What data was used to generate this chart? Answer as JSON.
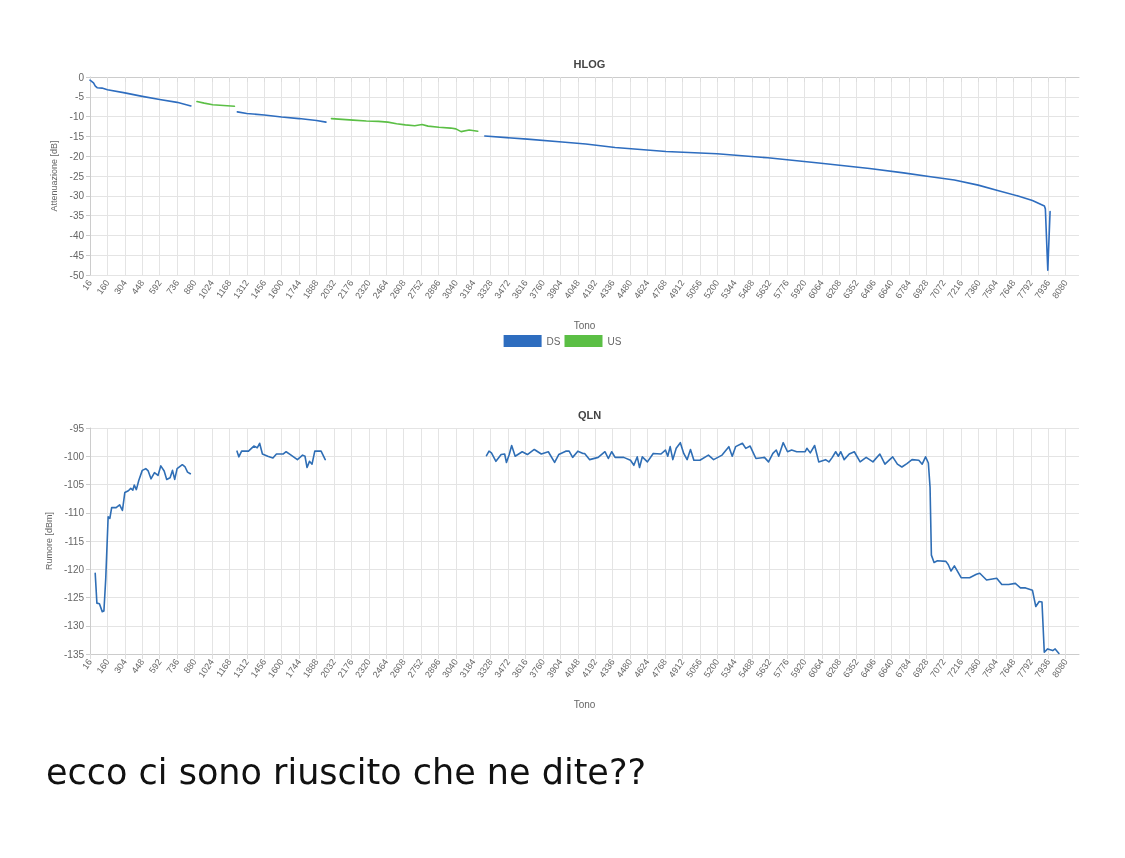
{
  "chart_data": [
    {
      "type": "line",
      "title": "HLOG",
      "xlabel": "Tono",
      "ylabel": "Attenuazione [dB]",
      "xlim": [
        16,
        8190
      ],
      "ylim": [
        -50,
        0
      ],
      "xticks": [
        16,
        160,
        304,
        448,
        592,
        736,
        880,
        1024,
        1168,
        1312,
        1456,
        1600,
        1744,
        1888,
        2032,
        2176,
        2320,
        2464,
        2608,
        2752,
        2896,
        3040,
        3184,
        3328,
        3472,
        3616,
        3760,
        3904,
        4048,
        4192,
        4336,
        4480,
        4624,
        4768,
        4912,
        5056,
        5200,
        5344,
        5488,
        5632,
        5776,
        5920,
        6064,
        6208,
        6352,
        6496,
        6640,
        6784,
        6928,
        7072,
        7216,
        7360,
        7504,
        7648,
        7792,
        7936,
        8080
      ],
      "yticks": [
        0,
        -5,
        -10,
        -15,
        -20,
        -25,
        -30,
        -35,
        -40,
        -45,
        -50
      ],
      "grid": true,
      "legend": "bottom",
      "marker": "none",
      "line_style": "solid",
      "series": [
        {
          "name": "DS",
          "color": "#2e6dbf",
          "x": [
            16,
            45,
            60,
            75,
            115,
            160,
            304,
            448,
            592,
            736,
            850,
            1040,
            1234,
            1312,
            1456,
            1600,
            1744,
            1888,
            1966,
            2600,
            3279,
            3630,
            3918,
            4114,
            4356,
            4777,
            5198,
            5618,
            6039,
            6459,
            6740,
            6964,
            7160,
            7357,
            7525,
            7693,
            7805,
            7904,
            7912,
            7932,
            7951
          ],
          "values": [
            -0.8,
            -1.5,
            -2.3,
            -2.7,
            -2.8,
            -3.2,
            -4.0,
            -4.9,
            -5.7,
            -6.4,
            -7.3,
            null,
            -8.8,
            -9.2,
            -9.6,
            -10.1,
            -10.5,
            -11.0,
            -11.4,
            null,
            -14.9,
            -15.7,
            -16.4,
            -16.9,
            -17.8,
            -18.8,
            -19.4,
            -20.4,
            -21.7,
            -23.1,
            -24.2,
            -25.2,
            -26.0,
            -27.3,
            -28.7,
            -30.1,
            -31.2,
            -32.6,
            -33.3,
            -48.8,
            -34.0
          ]
        },
        {
          "name": "US",
          "color": "#5bbf45",
          "x": [
            900,
            960,
            1030,
            1120,
            1210,
            1600,
            2012,
            2100,
            2190,
            2300,
            2400,
            2478,
            2550,
            2622,
            2700,
            2760,
            2810,
            2900,
            2997,
            3040,
            3083,
            3150,
            3221
          ],
          "values": [
            -6.2,
            -6.6,
            -7.0,
            -7.2,
            -7.4,
            null,
            -10.5,
            -10.7,
            -10.9,
            -11.1,
            -11.2,
            -11.4,
            -11.8,
            -12.1,
            -12.3,
            -12.0,
            -12.4,
            -12.7,
            -12.9,
            -13.1,
            -13.8,
            -13.4,
            -13.7
          ]
        }
      ]
    },
    {
      "type": "line",
      "title": "QLN",
      "xlabel": "Tono",
      "ylabel": "Rumore [dBm]",
      "xlim": [
        16,
        8190
      ],
      "ylim": [
        -135,
        -95
      ],
      "xticks": [
        16,
        160,
        304,
        448,
        592,
        736,
        880,
        1024,
        1168,
        1312,
        1456,
        1600,
        1744,
        1888,
        2032,
        2176,
        2320,
        2464,
        2608,
        2752,
        2896,
        3040,
        3184,
        3328,
        3472,
        3616,
        3760,
        3904,
        4048,
        4192,
        4336,
        4480,
        4624,
        4768,
        4912,
        5056,
        5200,
        5344,
        5488,
        5632,
        5776,
        5920,
        6064,
        6208,
        6352,
        6496,
        6640,
        6784,
        6928,
        7072,
        7216,
        7360,
        7504,
        7648,
        7792,
        7936,
        8080
      ],
      "yticks": [
        -95,
        -100,
        -105,
        -110,
        -115,
        -120,
        -125,
        -130,
        -135
      ],
      "grid": true,
      "legend": false,
      "marker": "none",
      "line_style": "solid",
      "annotations": [
        "ecco ci sono riuscito che ne dite??"
      ],
      "series": [
        {
          "color": "#2f6eb5",
          "x": [
            59,
            73,
            94,
            117,
            131,
            146,
            166,
            180,
            195,
            232,
            261,
            284,
            304,
            333,
            353,
            370,
            382,
            399,
            419,
            448,
            477,
            497,
            520,
            549,
            578,
            601,
            629,
            650,
            678,
            698,
            716,
            736,
            779,
            802,
            822,
            845,
            1040,
            1231,
            1246,
            1269,
            1326,
            1370,
            1398,
            1418,
            1441,
            1485,
            1528,
            1557,
            1614,
            1637,
            1672,
            1730,
            1773,
            1793,
            1810,
            1830,
            1851,
            1874,
            1926,
            1960,
            2600,
            3293,
            3314,
            3334,
            3371,
            3414,
            3443,
            3458,
            3481,
            3501,
            3530,
            3588,
            3631,
            3688,
            3746,
            3804,
            3856,
            3890,
            3948,
            3976,
            4005,
            4048,
            4091,
            4104,
            4146,
            4216,
            4272,
            4300,
            4328,
            4356,
            4427,
            4483,
            4511,
            4539,
            4558,
            4581,
            4623,
            4671,
            4735,
            4772,
            4791,
            4811,
            4833,
            4861,
            4895,
            4923,
            4951,
            4979,
            5007,
            5057,
            5127,
            5170,
            5240,
            5296,
            5324,
            5352,
            5408,
            5436,
            5472,
            5498,
            5520,
            5590,
            5624,
            5660,
            5688,
            5708,
            5745,
            5781,
            5815,
            5857,
            5927,
            5941,
            5969,
            6005,
            6039,
            6095,
            6123,
            6151,
            6179,
            6201,
            6221,
            6249,
            6291,
            6333,
            6381,
            6431,
            6487,
            6544,
            6586,
            6650,
            6689,
            6726,
            6768,
            6810,
            6866,
            6894,
            6922,
            6945,
            6959,
            6970,
            6992,
            7020,
            7090,
            7110,
            7132,
            7160,
            7216,
            7286,
            7342,
            7370,
            7426,
            7510,
            7552,
            7608,
            7664,
            7706,
            7748,
            7805,
            7833,
            7861,
            7884,
            7903,
            7931,
            7973,
            7993,
            8024
          ],
          "values": [
            -120.7,
            -126.0,
            -126.1,
            -127.5,
            -127.4,
            -121.7,
            -110.7,
            -111.0,
            -109.1,
            -109.1,
            -108.6,
            -109.6,
            -106.4,
            -106.1,
            -105.7,
            -106.0,
            -105.1,
            -105.9,
            -104.3,
            -102.5,
            -102.2,
            -102.6,
            -104.0,
            -102.9,
            -103.4,
            -101.7,
            -102.6,
            -104.1,
            -103.8,
            -102.5,
            -104.1,
            -102.2,
            -101.5,
            -101.9,
            -102.8,
            -103.1,
            null,
            -99.1,
            -100.1,
            -99.1,
            -99.1,
            -98.2,
            -98.5,
            -97.7,
            -99.6,
            -100.0,
            -100.3,
            -99.6,
            -99.6,
            -99.2,
            -99.7,
            -100.6,
            -99.8,
            -100.0,
            -102.0,
            -100.9,
            -101.4,
            -99.1,
            -99.1,
            -100.6,
            null,
            -99.9,
            -99.1,
            -99.4,
            -100.9,
            -99.7,
            -99.6,
            -101.1,
            -99.7,
            -98.1,
            -100.0,
            -99.2,
            -99.7,
            -98.8,
            -99.6,
            -99.2,
            -101.1,
            -99.7,
            -99.1,
            -99.1,
            -100.2,
            -99.1,
            -99.5,
            -99.5,
            -100.6,
            -100.2,
            -99.2,
            -100.4,
            -99.2,
            -100.2,
            -100.2,
            -100.7,
            -101.6,
            -100.1,
            -102.0,
            -100.1,
            -101.0,
            -99.5,
            -99.6,
            -98.9,
            -100.0,
            -98.3,
            -100.6,
            -98.6,
            -97.6,
            -99.5,
            -100.6,
            -98.8,
            -100.7,
            -100.7,
            -99.8,
            -100.6,
            -99.8,
            -98.3,
            -100.0,
            -98.3,
            -97.7,
            -98.6,
            -98.2,
            -99.4,
            -100.4,
            -100.2,
            -101.0,
            -99.5,
            -98.9,
            -100.0,
            -97.6,
            -99.2,
            -98.9,
            -99.2,
            -99.2,
            -98.6,
            -99.4,
            -98.1,
            -101.0,
            -100.6,
            -101.0,
            -100.2,
            -99.2,
            -100.0,
            -99.2,
            -100.6,
            -99.6,
            -99.2,
            -101.0,
            -100.2,
            -101.0,
            -99.6,
            -101.4,
            -100.1,
            -101.4,
            -101.9,
            -101.3,
            -100.6,
            -100.7,
            -101.4,
            -100.1,
            -101.2,
            -105.5,
            -117.5,
            -118.8,
            -118.5,
            -118.6,
            -119.2,
            -120.3,
            -119.4,
            -121.5,
            -121.5,
            -120.9,
            -120.7,
            -121.9,
            -121.6,
            -122.7,
            -122.7,
            -122.5,
            -123.3,
            -123.3,
            -123.7,
            -126.6,
            -125.7,
            -125.8,
            -134.7,
            -134.1,
            -134.4,
            -134.1,
            -134.9
          ]
        }
      ]
    }
  ]
}
